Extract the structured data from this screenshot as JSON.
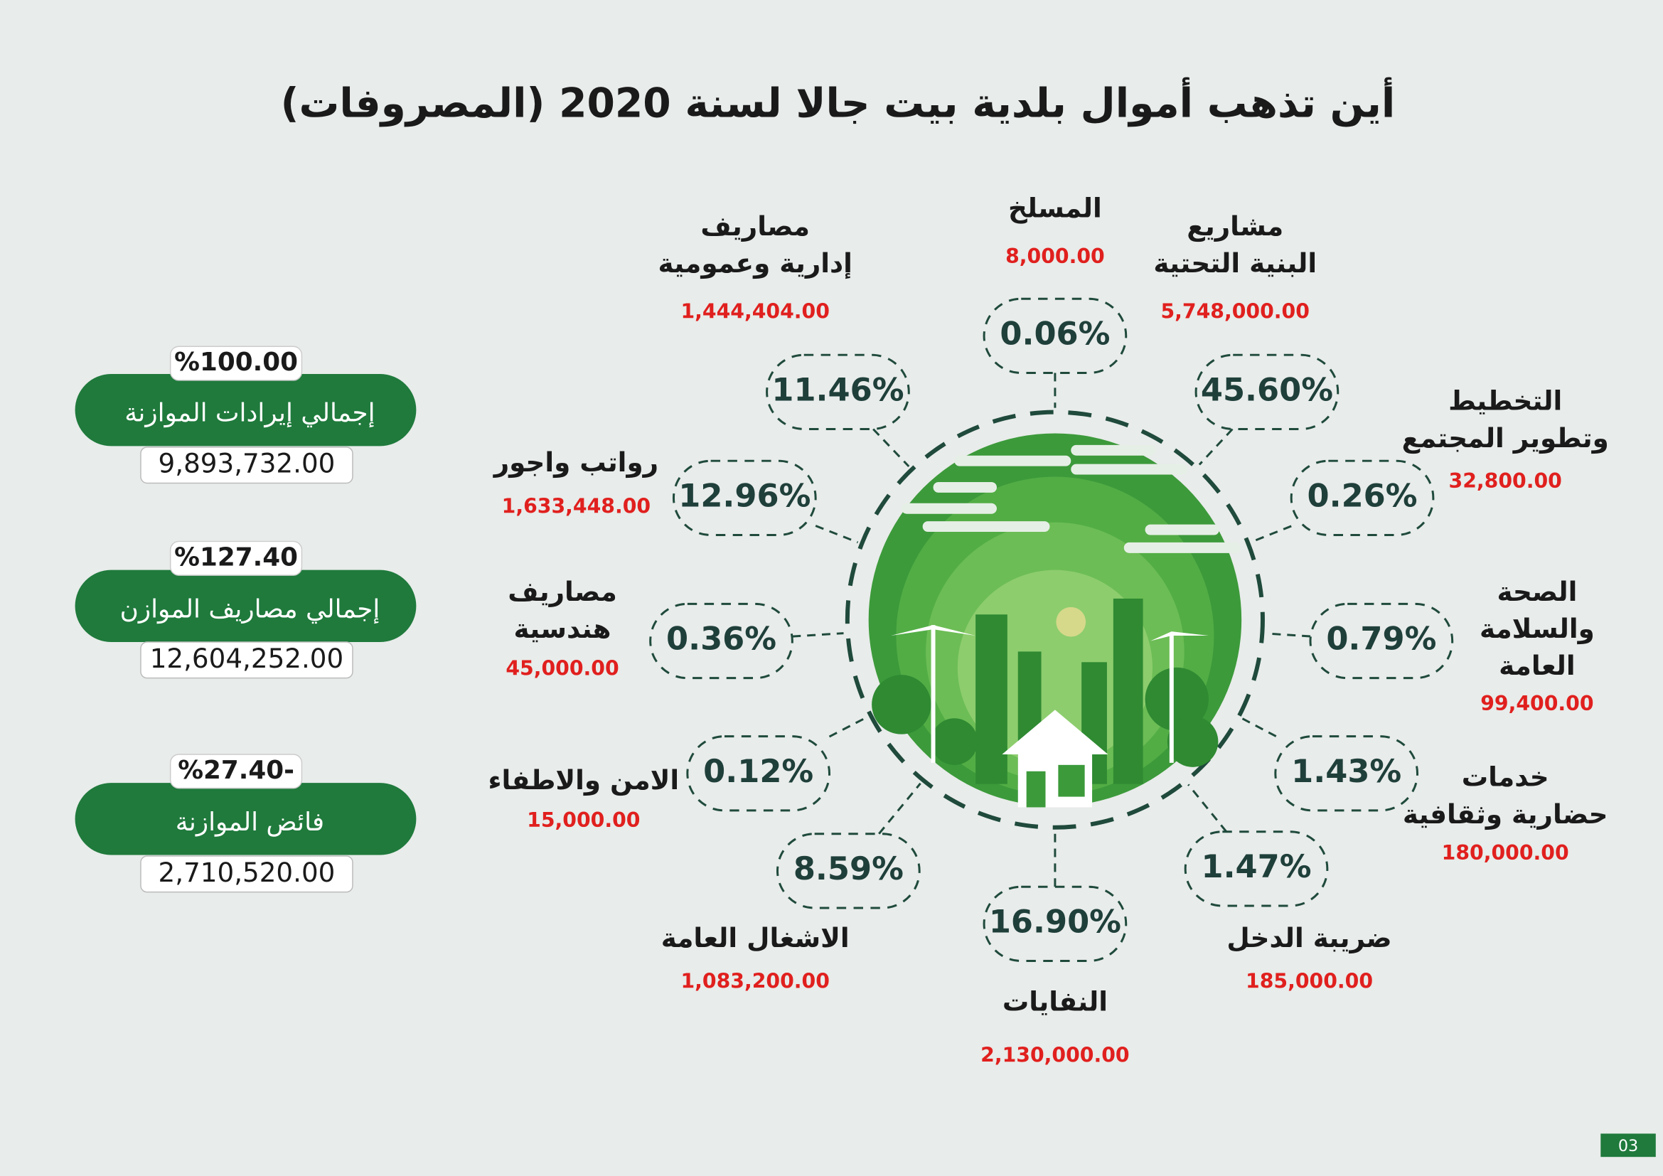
{
  "title": "أين تذهب أموال بلدية بيت جالا لسنة 2020  (المصروفات)",
  "summary": [
    {
      "percent": "%100.00",
      "label": "إجمالي إيرادات الموازنة",
      "amount": "9,893,732.00"
    },
    {
      "percent": "%127.40",
      "label": "إجمالي  مصاريف الموازن",
      "amount": "12,604,252.00"
    },
    {
      "percent": "%27.40-",
      "label": "فائض الموازنة",
      "amount": "2,710,520.00"
    }
  ],
  "items": [
    {
      "lines": [
        "المسلخ"
      ],
      "amount": "8,000.00",
      "percent": "0.06%"
    },
    {
      "lines": [
        "مشاريع",
        "البنية التحتية"
      ],
      "amount": "5,748,000.00",
      "percent": "45.60%"
    },
    {
      "lines": [
        "التخطيط",
        "وتطوير المجتمع"
      ],
      "amount": "32,800.00",
      "percent": "0.26%"
    },
    {
      "lines": [
        "الصحة",
        "والسلامة",
        "العامة"
      ],
      "amount": "99,400.00",
      "percent": "0.79%"
    },
    {
      "lines": [
        "خدمات",
        "حضارية وثقافية"
      ],
      "amount": "180,000.00",
      "percent": "1.43%"
    },
    {
      "lines": [
        "ضريبة الدخل"
      ],
      "amount": "185,000.00",
      "percent": "1.47%"
    },
    {
      "lines": [
        "النفايات"
      ],
      "amount": "2,130,000.00",
      "percent": "16.90%"
    },
    {
      "lines": [
        "الاشغال العامة"
      ],
      "amount": "1,083,200.00",
      "percent": "8.59%"
    },
    {
      "lines": [
        "الامن والاطفاء"
      ],
      "amount": "15,000.00",
      "percent": "0.12%"
    },
    {
      "lines": [
        "مصاريف",
        "هندسية"
      ],
      "amount": "45,000.00",
      "percent": "0.36%"
    },
    {
      "lines": [
        "رواتب واجور"
      ],
      "amount": "1,633,448.00",
      "percent": "12.96%"
    },
    {
      "lines": [
        "مصاريف",
        "إدارية وعمومية"
      ],
      "amount": "1,444,404.00",
      "percent": "11.46%"
    }
  ],
  "page_number": "03"
}
